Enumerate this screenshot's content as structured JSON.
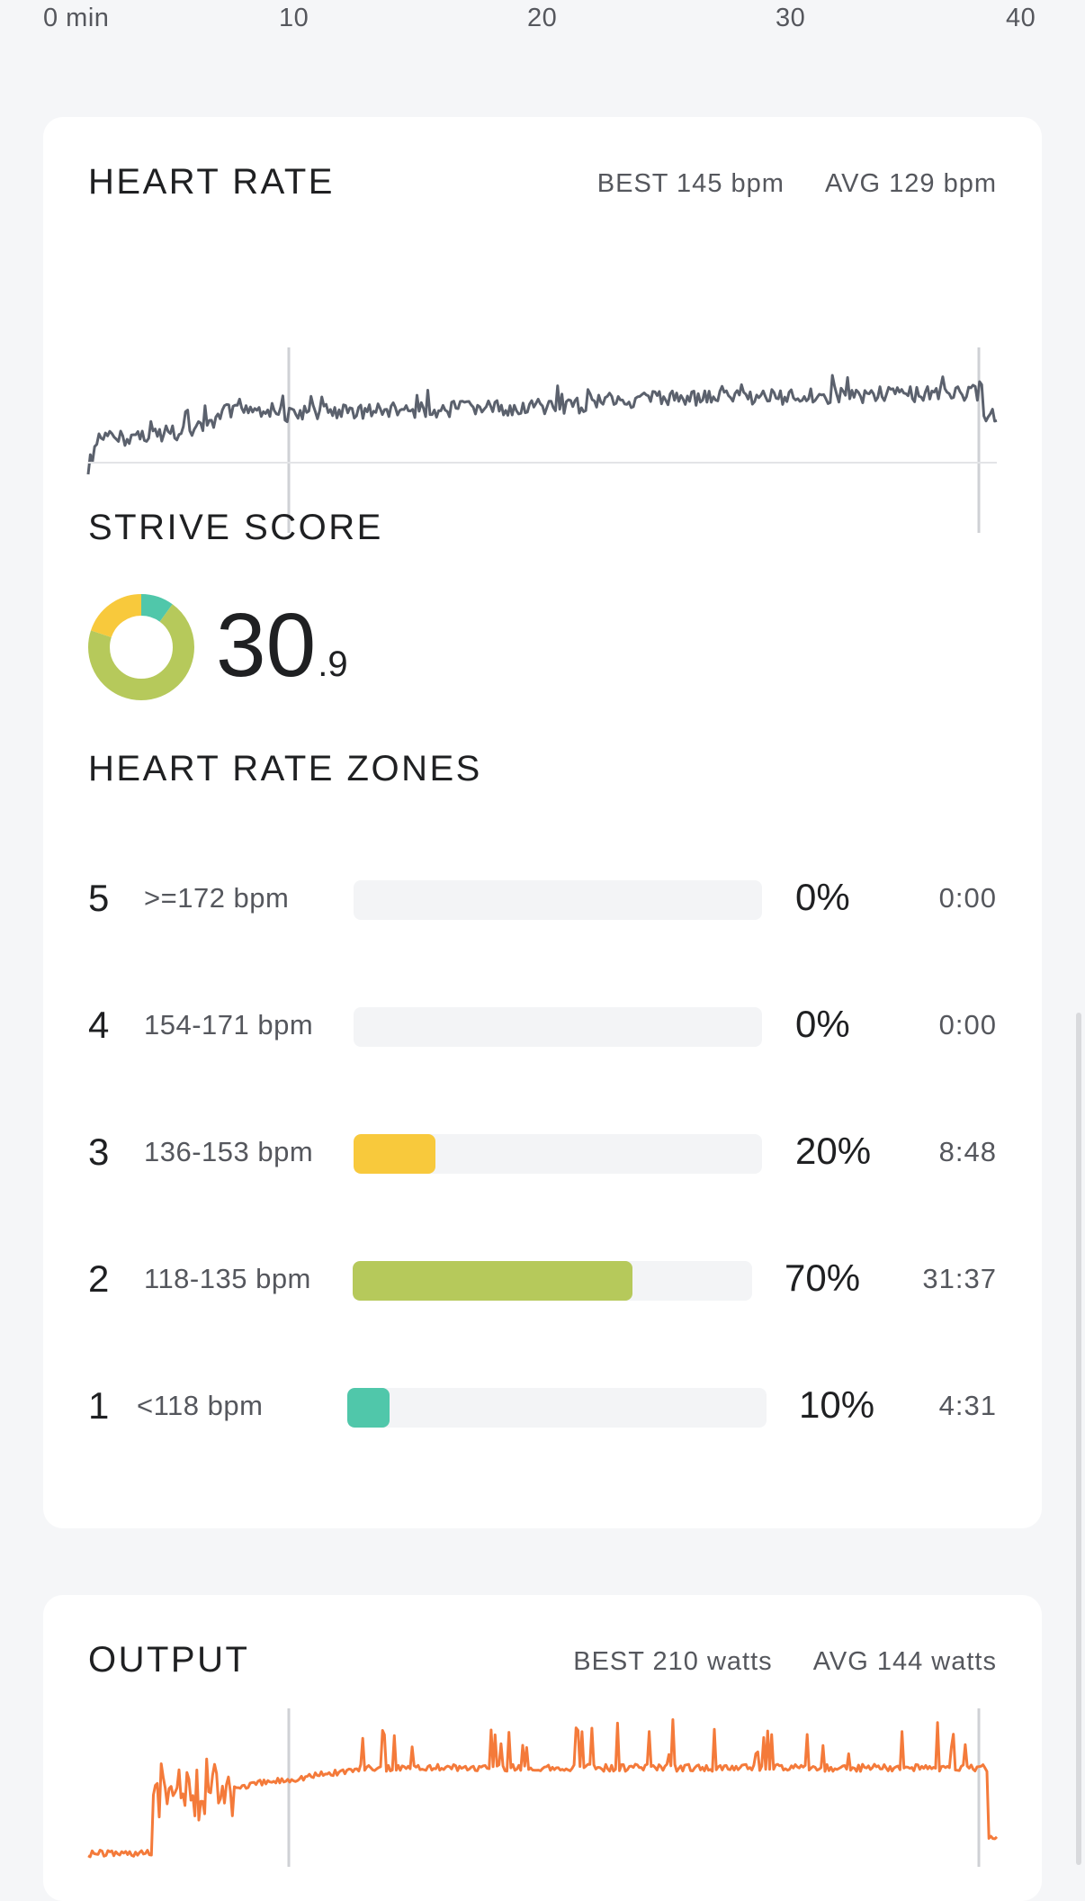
{
  "time_axis": {
    "labels": [
      "0 min",
      "10",
      "20",
      "30",
      "40"
    ]
  },
  "heart_rate": {
    "title": "HEART RATE",
    "best": "BEST 145 bpm",
    "avg": "AVG 129 bpm",
    "color": "#5b616d"
  },
  "strive_score": {
    "title": "STRIVE SCORE",
    "value": "30",
    "decimal": ".9",
    "segments": [
      {
        "zone": "1",
        "fraction": 0.1,
        "color": "#50c7aa"
      },
      {
        "zone": "2",
        "fraction": 0.7,
        "color": "#b6c95b"
      },
      {
        "zone": "3",
        "fraction": 0.2,
        "color": "#f8c93c"
      }
    ]
  },
  "heart_rate_zones": {
    "title": "HEART RATE ZONES",
    "rows": [
      {
        "zone": "5",
        "range": ">=172 bpm",
        "percent": "0%",
        "time": "0:00",
        "fill": 0.0,
        "color": "#f5a742"
      },
      {
        "zone": "4",
        "range": "154-171 bpm",
        "percent": "0%",
        "time": "0:00",
        "fill": 0.0,
        "color": "#f1d63a"
      },
      {
        "zone": "3",
        "range": "136-153 bpm",
        "percent": "20%",
        "time": "8:48",
        "fill": 0.2,
        "color": "#f8c93c"
      },
      {
        "zone": "2",
        "range": "118-135 bpm",
        "percent": "70%",
        "time": "31:37",
        "fill": 0.7,
        "color": "#b6c95b"
      },
      {
        "zone": "1",
        "range": "<118 bpm",
        "percent": "10%",
        "time": "4:31",
        "fill": 0.1,
        "color": "#50c7aa"
      }
    ]
  },
  "output": {
    "title": "OUTPUT",
    "best": "BEST 210 watts",
    "avg": "AVG 144 watts",
    "color": "#f47a3a"
  }
}
